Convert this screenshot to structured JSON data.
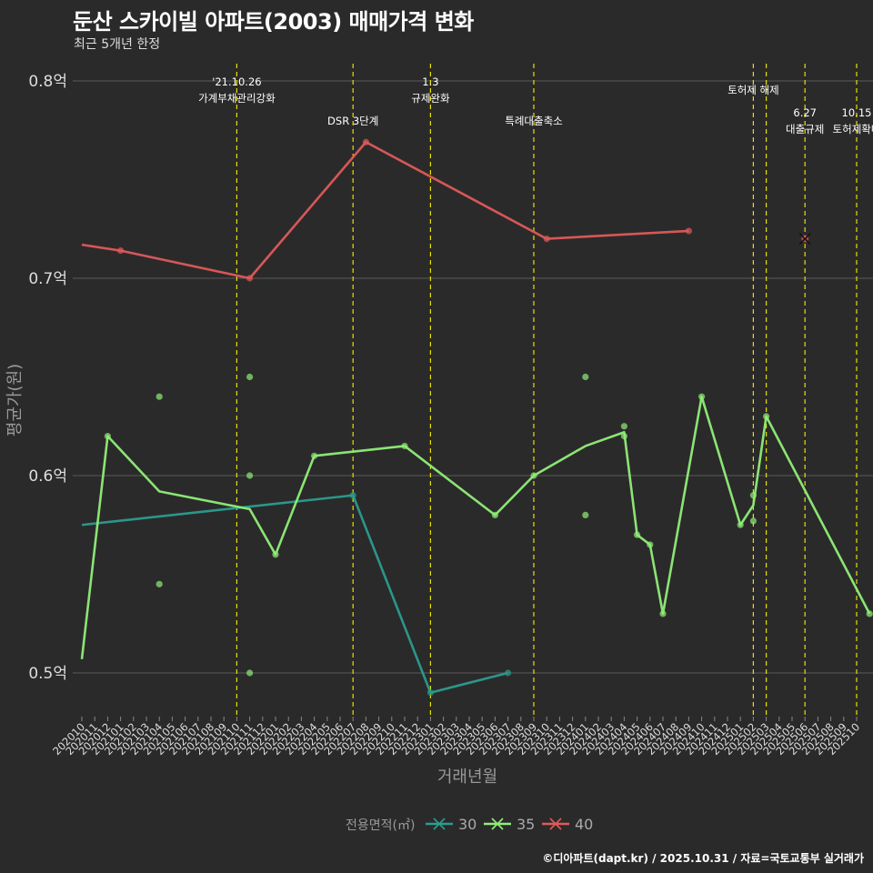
{
  "header": {
    "title": "둔산 스카이빌 아파트(2003) 매매가격 변화",
    "subtitle": "최근 5개년 한정",
    "caption": "©디아파트(dapt.kr) / 2025.10.31 / 자료=국토교통부 실거래가"
  },
  "chart_data": {
    "type": "line",
    "title": "둔산 스카이빌 아파트(2003) 매매가격 변화",
    "subtitle": "최근 5개년 한정",
    "xlabel": "거래년월",
    "ylabel": "평균가(원)",
    "ylim": [
      0.475,
      0.81
    ],
    "yticks": [
      0.5,
      0.6,
      0.7,
      0.8
    ],
    "ytick_labels": [
      "0.5억",
      "0.6억",
      "0.7억",
      "0.8억"
    ],
    "x_start": "2020-10",
    "x_end": "2025-10",
    "xtick_labels": [
      "202010",
      "202011",
      "202012",
      "202101",
      "202102",
      "202103",
      "202104",
      "202105",
      "202106",
      "202107",
      "202108",
      "202109",
      "202110",
      "202111",
      "202112",
      "202201",
      "202202",
      "202203",
      "202204",
      "202205",
      "202206",
      "202207",
      "202208",
      "202209",
      "202210",
      "202211",
      "202212",
      "202301",
      "202302",
      "202303",
      "202304",
      "202305",
      "202306",
      "202307",
      "202308",
      "202309",
      "202310",
      "202311",
      "202312",
      "202401",
      "202402",
      "202403",
      "202404",
      "202405",
      "202406",
      "202407",
      "202408",
      "202409",
      "202410",
      "202411",
      "202412",
      "202501",
      "202502",
      "202503",
      "202504",
      "202505",
      "202506",
      "202507",
      "202508",
      "202509",
      "202510"
    ],
    "legend_title": "전용면적(㎡)",
    "legend_position": "bottom",
    "series": [
      {
        "name": "30",
        "color": "#2a9d8f",
        "line": [
          [
            0,
            0.575
          ],
          [
            21,
            0.59
          ],
          [
            27,
            0.49
          ],
          [
            33,
            0.5
          ]
        ],
        "points": [
          [
            21,
            0.59
          ],
          [
            27,
            0.49
          ],
          [
            33,
            0.5
          ]
        ]
      },
      {
        "name": "35",
        "color": "#90ee78",
        "line": [
          [
            0,
            0.507
          ],
          [
            2,
            0.62
          ],
          [
            6,
            0.592
          ],
          [
            13,
            0.583
          ],
          [
            15,
            0.56
          ],
          [
            18,
            0.61
          ],
          [
            25,
            0.615
          ],
          [
            32,
            0.58
          ],
          [
            35,
            0.6
          ],
          [
            39,
            0.615
          ],
          [
            42,
            0.622
          ],
          [
            43,
            0.57
          ],
          [
            44,
            0.565
          ],
          [
            45,
            0.53
          ],
          [
            48,
            0.64
          ],
          [
            51,
            0.575
          ],
          [
            52,
            0.585
          ],
          [
            53,
            0.63
          ],
          [
            61,
            0.53
          ]
        ],
        "points": [
          [
            2,
            0.62
          ],
          [
            6,
            0.64
          ],
          [
            6,
            0.545
          ],
          [
            13,
            0.65
          ],
          [
            13,
            0.6
          ],
          [
            13,
            0.5
          ],
          [
            15,
            0.56
          ],
          [
            18,
            0.61
          ],
          [
            25,
            0.615
          ],
          [
            32,
            0.58
          ],
          [
            35,
            0.6
          ],
          [
            39,
            0.65
          ],
          [
            39,
            0.58
          ],
          [
            42,
            0.625
          ],
          [
            42,
            0.62
          ],
          [
            43,
            0.57
          ],
          [
            44,
            0.565
          ],
          [
            45,
            0.53
          ],
          [
            48,
            0.64
          ],
          [
            51,
            0.575
          ],
          [
            52,
            0.59
          ],
          [
            52,
            0.577
          ],
          [
            53,
            0.63
          ],
          [
            61,
            0.53
          ]
        ]
      },
      {
        "name": "40",
        "color": "#e05a5a",
        "line": [
          [
            0,
            0.717
          ],
          [
            3,
            0.714
          ],
          [
            13,
            0.7
          ],
          [
            22,
            0.769
          ],
          [
            36,
            0.72
          ],
          [
            47,
            0.724
          ]
        ],
        "points": [
          [
            3,
            0.714
          ],
          [
            13,
            0.7
          ],
          [
            22,
            0.769
          ],
          [
            36,
            0.72
          ],
          [
            47,
            0.724
          ]
        ],
        "cross_points": [
          [
            56,
            0.72
          ]
        ]
      }
    ],
    "annotations": [
      {
        "x": 12,
        "lines": [
          "'21.10.26",
          "가계부채관리강화"
        ],
        "row": 0
      },
      {
        "x": 21,
        "lines": [
          "DSR 3단계"
        ],
        "row": 2
      },
      {
        "x": 27,
        "lines": [
          "1.3",
          "규제완화"
        ],
        "row": 0
      },
      {
        "x": 35,
        "lines": [
          "특례대출축소"
        ],
        "row": 2
      },
      {
        "x": 52,
        "lines": [
          "토허제 해제"
        ],
        "row": 1
      },
      {
        "x": 53,
        "lines": [],
        "row": 1
      },
      {
        "x": 56,
        "lines": [
          "6.27",
          "대출규제"
        ],
        "row": 3
      },
      {
        "x": 60,
        "lines": [
          "10.15",
          "토허제확대"
        ],
        "row": 3
      }
    ]
  }
}
